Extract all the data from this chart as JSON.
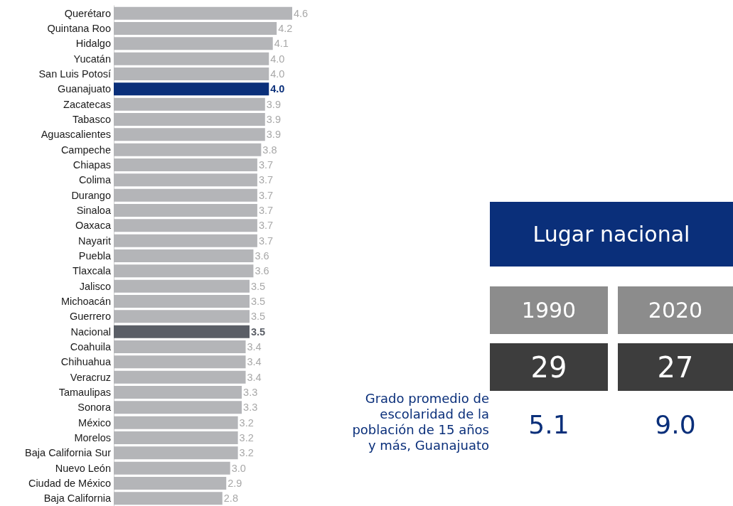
{
  "chart_data": [
    {
      "type": "bar",
      "orientation": "horizontal",
      "tick_labels": "y",
      "xlim": [
        0,
        4.6
      ],
      "categories": [
        "Querétaro",
        "Quintana Roo",
        "Hidalgo",
        "Yucatán",
        "San Luis Potosí",
        "Guanajuato",
        "Zacatecas",
        "Tabasco",
        "Aguascalientes",
        "Campeche",
        "Chiapas",
        "Colima",
        "Durango",
        "Sinaloa",
        "Oaxaca",
        "Nayarit",
        "Puebla",
        "Tlaxcala",
        "Jalisco",
        "Michoacán",
        "Guerrero",
        "Nacional",
        "Coahuila",
        "Chihuahua",
        "Veracruz",
        "Tamaulipas",
        "Sonora",
        "México",
        "Morelos",
        "Baja California Sur",
        "Nuevo León",
        "Ciudad de México",
        "Baja California"
      ],
      "values": [
        4.6,
        4.2,
        4.1,
        4.0,
        4.0,
        4.0,
        3.9,
        3.9,
        3.9,
        3.8,
        3.7,
        3.7,
        3.7,
        3.7,
        3.7,
        3.7,
        3.6,
        3.6,
        3.5,
        3.5,
        3.5,
        3.5,
        3.4,
        3.4,
        3.4,
        3.3,
        3.3,
        3.2,
        3.2,
        3.2,
        3.0,
        2.9,
        2.8
      ],
      "value_labels": [
        "4.6",
        "4.2",
        "4.1",
        "4.0",
        "4.0",
        "4.0",
        "3.9",
        "3.9",
        "3.9",
        "3.8",
        "3.7",
        "3.7",
        "3.7",
        "3.7",
        "3.7",
        "3.7",
        "3.6",
        "3.6",
        "3.5",
        "3.5",
        "3.5",
        "3.5",
        "3.4",
        "3.4",
        "3.4",
        "3.3",
        "3.3",
        "3.2",
        "3.2",
        "3.2",
        "3.0",
        "2.9",
        "2.8"
      ],
      "colors": [
        "#b4b5b8",
        "#b4b5b8",
        "#b4b5b8",
        "#b4b5b8",
        "#b4b5b8",
        "#0a2f7a",
        "#b4b5b8",
        "#b4b5b8",
        "#b4b5b8",
        "#b4b5b8",
        "#b4b5b8",
        "#b4b5b8",
        "#b4b5b8",
        "#b4b5b8",
        "#b4b5b8",
        "#b4b5b8",
        "#b4b5b8",
        "#b4b5b8",
        "#b4b5b8",
        "#b4b5b8",
        "#b4b5b8",
        "#5a5e66",
        "#b4b5b8",
        "#b4b5b8",
        "#b4b5b8",
        "#b4b5b8",
        "#b4b5b8",
        "#b4b5b8",
        "#b4b5b8",
        "#b4b5b8",
        "#b4b5b8",
        "#b4b5b8",
        "#b4b5b8"
      ]
    },
    {
      "type": "other",
      "title": "Lugar nacional",
      "categories": [
        "1990",
        "2020"
      ],
      "data_labels": true,
      "series": [
        {
          "values": [
            29,
            27
          ]
        },
        {
          "name": "Grado promedio de escolaridad de la población de 15 años y más, Guanajuato",
          "values": [
            5.1,
            9.0
          ],
          "value_labels": [
            "5.1",
            "9.0"
          ]
        }
      ]
    }
  ]
}
